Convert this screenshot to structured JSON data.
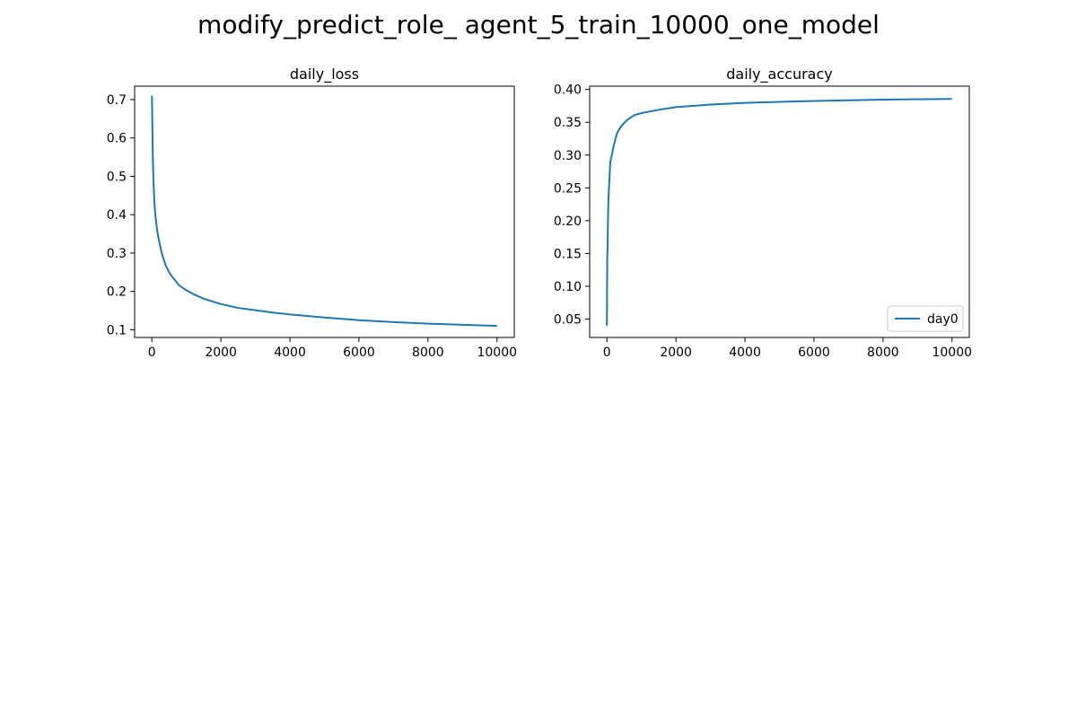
{
  "figure": {
    "title": "modify_predict_role_ agent_5_train_10000_one_model"
  },
  "colors": {
    "series": "#1f77b4",
    "axes": "#000000",
    "legend_border": "#cccccc"
  },
  "chart_data": [
    {
      "type": "line",
      "title": "daily_loss",
      "xlabel": "",
      "ylabel": "",
      "xlim": [
        -500,
        10500
      ],
      "ylim": [
        0.08,
        0.735
      ],
      "xticks": [
        0,
        2000,
        4000,
        6000,
        8000,
        10000
      ],
      "xtick_labels": [
        "0",
        "2000",
        "4000",
        "6000",
        "8000",
        "10000"
      ],
      "yticks": [
        0.1,
        0.2,
        0.3,
        0.4,
        0.5,
        0.6,
        0.7
      ],
      "ytick_labels": [
        "0.1",
        "0.2",
        "0.3",
        "0.4",
        "0.5",
        "0.6",
        "0.7"
      ],
      "grid": false,
      "legend": null,
      "series": [
        {
          "name": "",
          "x": [
            0,
            5,
            10,
            20,
            30,
            50,
            75,
            100,
            150,
            200,
            300,
            400,
            500,
            600,
            800,
            1000,
            1200,
            1500,
            2000,
            2500,
            3000,
            3500,
            4000,
            5000,
            6000,
            7000,
            8000,
            9000,
            10000
          ],
          "y": [
            0.71,
            0.69,
            0.655,
            0.59,
            0.54,
            0.48,
            0.43,
            0.4,
            0.36,
            0.335,
            0.295,
            0.268,
            0.25,
            0.237,
            0.215,
            0.203,
            0.193,
            0.181,
            0.167,
            0.157,
            0.151,
            0.145,
            0.14,
            0.132,
            0.125,
            0.12,
            0.116,
            0.113,
            0.11
          ]
        }
      ]
    },
    {
      "type": "line",
      "title": "daily_accuracy",
      "xlabel": "",
      "ylabel": "",
      "xlim": [
        -500,
        10500
      ],
      "ylim": [
        0.022,
        0.405
      ],
      "xticks": [
        0,
        2000,
        4000,
        6000,
        8000,
        10000
      ],
      "xtick_labels": [
        "0",
        "2000",
        "4000",
        "6000",
        "8000",
        "10000"
      ],
      "yticks": [
        0.05,
        0.1,
        0.15,
        0.2,
        0.25,
        0.3,
        0.35,
        0.4
      ],
      "ytick_labels": [
        "0.05",
        "0.10",
        "0.15",
        "0.20",
        "0.25",
        "0.30",
        "0.35",
        "0.40"
      ],
      "grid": false,
      "legend": "lower right",
      "series": [
        {
          "name": "day0",
          "x": [
            0,
            5,
            10,
            20,
            30,
            40,
            50,
            75,
            100,
            150,
            200,
            250,
            300,
            400,
            500,
            600,
            800,
            1000,
            1500,
            2000,
            3000,
            4000,
            5000,
            6000,
            7000,
            8000,
            9000,
            10000
          ],
          "y": [
            0.04,
            0.1,
            0.145,
            0.16,
            0.2,
            0.225,
            0.24,
            0.265,
            0.29,
            0.302,
            0.315,
            0.325,
            0.334,
            0.343,
            0.349,
            0.354,
            0.361,
            0.364,
            0.369,
            0.373,
            0.377,
            0.3795,
            0.381,
            0.3825,
            0.3835,
            0.3845,
            0.385,
            0.3855
          ]
        }
      ]
    }
  ]
}
